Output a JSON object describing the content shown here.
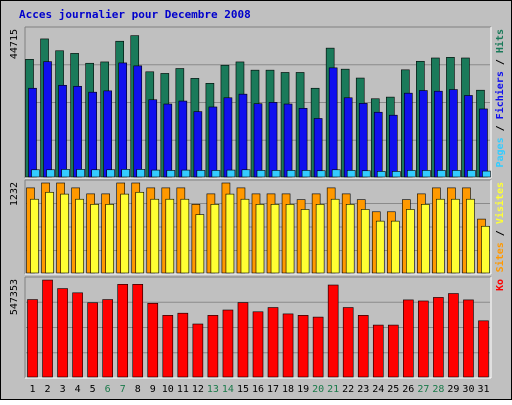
{
  "chart_data": {
    "type": "bar",
    "title": "Acces journalier pour Decembre 2008",
    "colors": {
      "background": "#c0c0c0",
      "title": "#0000cc",
      "grid": "#8a8a8a",
      "weekday_label": "#000000",
      "weekend_label": "#1a7a4a",
      "hits": "#1a7a5a",
      "files": "#1010ee",
      "pages": "#33ccff",
      "visits": "#ffff33",
      "sites": "#ff9900",
      "kb": "#ff0000"
    },
    "categories": [
      "1",
      "2",
      "3",
      "4",
      "5",
      "6",
      "7",
      "8",
      "9",
      "10",
      "11",
      "12",
      "13",
      "14",
      "15",
      "16",
      "17",
      "18",
      "19",
      "20",
      "21",
      "22",
      "23",
      "24",
      "25",
      "26",
      "27",
      "28",
      "29",
      "30",
      "31"
    ],
    "weekend_days": [
      "6",
      "7",
      "13",
      "14",
      "20",
      "21",
      "27",
      "28"
    ],
    "panels": [
      {
        "id": "hits-files-pages",
        "ymax_label": "44715",
        "ymax": 44715,
        "side_label": [
          {
            "text": "Pages",
            "color": "#33ccff"
          },
          {
            "text": " / ",
            "color": "#000000"
          },
          {
            "text": "Fichiers",
            "color": "#1010ee"
          },
          {
            "text": " / ",
            "color": "#000000"
          },
          {
            "text": "Hits",
            "color": "#1a7a5a"
          }
        ],
        "series": [
          {
            "name": "Hits",
            "color": "#1a7a5a",
            "values": [
              35800,
              42000,
              38400,
              37600,
              34600,
              35000,
              41300,
              43000,
              32000,
              31500,
              33000,
              30000,
              28500,
              34000,
              35000,
              32500,
              32500,
              31800,
              31800,
              27000,
              39200,
              32800,
              30100,
              23800,
              24300,
              32600,
              35200,
              36200,
              36400,
              36200,
              26400
            ]
          },
          {
            "name": "Fichiers",
            "color": "#1010ee",
            "values": [
              27000,
              35100,
              27900,
              27600,
              25800,
              26200,
              34700,
              33800,
              23500,
              22200,
              23100,
              19900,
              21300,
              24100,
              25200,
              22300,
              22700,
              22200,
              20900,
              17800,
              33200,
              24100,
              22400,
              19700,
              18800,
              25500,
              26300,
              26100,
              26600,
              24800,
              20700
            ]
          },
          {
            "name": "Pages",
            "color": "#33ccff",
            "values": [
              2200,
              2200,
              2300,
              2300,
              2200,
              2200,
              2300,
              2300,
              2100,
              2000,
              2100,
              2000,
              2000,
              2100,
              2200,
              2000,
              2000,
              2000,
              2000,
              1900,
              2200,
              2000,
              1900,
              1700,
              1700,
              2000,
              2000,
              2000,
              2000,
              2000,
              1800
            ]
          }
        ]
      },
      {
        "id": "sites-visits",
        "ymax_label": "1232",
        "ymax": 1232,
        "side_label": [
          {
            "text": "Sites",
            "color": "#ff9900"
          },
          {
            "text": " / ",
            "color": "#000000"
          },
          {
            "text": "Visites",
            "color": "#ffff33"
          }
        ],
        "series": [
          {
            "name": "Sites",
            "color": "#ff9900",
            "values": [
              1165,
              1232,
              1232,
              1165,
              1083,
              1083,
              1232,
              1232,
              1165,
              1165,
              1165,
              940,
              1083,
              1232,
              1165,
              1083,
              1083,
              1083,
              1004,
              1083,
              1165,
              1083,
              1004,
              838,
              838,
              1004,
              1083,
              1165,
              1165,
              1165,
              738
            ]
          },
          {
            "name": "Visites",
            "color": "#ffff33",
            "values": [
              1010,
              1105,
              1080,
              1010,
              940,
              940,
              1080,
              1105,
              1010,
              1010,
              1010,
              800,
              940,
              1080,
              1010,
              940,
              940,
              940,
              870,
              940,
              1010,
              940,
              870,
              710,
              710,
              870,
              940,
              1010,
              1010,
              1010,
              640
            ]
          }
        ]
      },
      {
        "id": "kb",
        "ymax_label": "547353",
        "ymax": 547353,
        "side_label": [
          {
            "text": "Ko",
            "color": "#ff0000"
          }
        ],
        "series": [
          {
            "name": "Ko",
            "color": "#ff0000",
            "values": [
              437000,
              547000,
              499000,
              475000,
              419000,
              437000,
              523000,
              523000,
              416000,
              348000,
              360000,
              299000,
              348000,
              378000,
              420000,
              368000,
              392000,
              356000,
              348000,
              338000,
              519000,
              392000,
              348000,
              293000,
              293000,
              435000,
              429000,
              449000,
              471000,
              435000,
              317000
            ]
          }
        ]
      }
    ]
  }
}
